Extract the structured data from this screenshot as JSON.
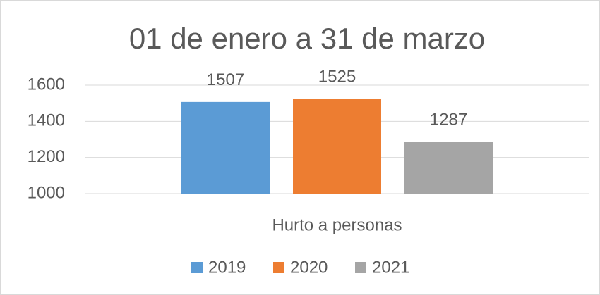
{
  "chart_data": {
    "type": "bar",
    "title": "01 de enero a 31 de marzo",
    "categories": [
      "Hurto a personas"
    ],
    "series": [
      {
        "name": "2019",
        "color": "#5b9bd5",
        "values": [
          1507
        ]
      },
      {
        "name": "2020",
        "color": "#ed7d31",
        "values": [
          1525
        ]
      },
      {
        "name": "2021",
        "color": "#a5a5a5",
        "values": [
          1287
        ]
      }
    ],
    "ylim": [
      1000,
      1600
    ],
    "yticks": [
      1000,
      1200,
      1400,
      1600
    ],
    "grid": true,
    "legend": "bottom"
  }
}
